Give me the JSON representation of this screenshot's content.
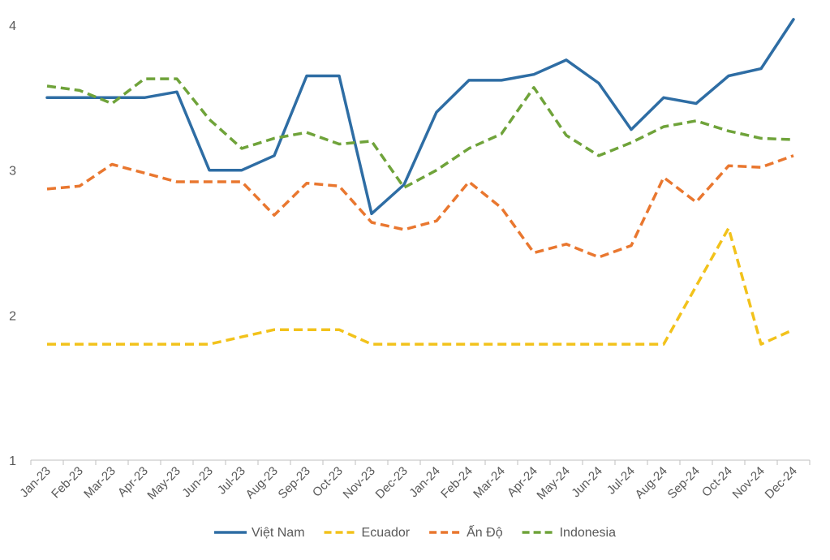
{
  "chart_data": {
    "type": "line",
    "title": "",
    "xlabel": "",
    "ylabel": "",
    "ylim": [
      1,
      4
    ],
    "y_ticks": [
      "1",
      "2",
      "3",
      "4"
    ],
    "grid": false,
    "legend_position": "bottom",
    "categories": [
      "Jan-23",
      "Feb-23",
      "Mar-23",
      "Apr-23",
      "May-23",
      "Jun-23",
      "Jul-23",
      "Aug-23",
      "Sep-23",
      "Oct-23",
      "Nov-23",
      "Dec-23",
      "Jan-24",
      "Feb-24",
      "Mar-24",
      "Apr-24",
      "May-24",
      "Jun-24",
      "Jul-24",
      "Aug-24",
      "Sep-24",
      "Oct-24",
      "Nov-24",
      "Dec-24"
    ],
    "series": [
      {
        "name": "Việt Nam",
        "color": "#2E6DA4",
        "dash": "solid",
        "values": [
          3.5,
          3.5,
          3.5,
          3.5,
          3.54,
          3.0,
          3.0,
          3.1,
          3.65,
          3.65,
          2.7,
          2.9,
          3.4,
          3.62,
          3.62,
          3.66,
          3.76,
          3.6,
          3.28,
          3.5,
          3.46,
          3.65,
          3.7,
          4.04
        ]
      },
      {
        "name": "Ecuador",
        "color": "#F2C21B",
        "dash": "dashed",
        "values": [
          1.8,
          1.8,
          1.8,
          1.8,
          1.8,
          1.8,
          1.85,
          1.9,
          1.9,
          1.9,
          1.8,
          1.8,
          1.8,
          1.8,
          1.8,
          1.8,
          1.8,
          1.8,
          1.8,
          1.8,
          2.2,
          2.6,
          1.8,
          1.9
        ]
      },
      {
        "name": "Ấn Độ",
        "color": "#E9772F",
        "dash": "dashed",
        "values": [
          2.87,
          2.89,
          3.04,
          2.98,
          2.92,
          2.92,
          2.92,
          2.69,
          2.91,
          2.89,
          2.64,
          2.59,
          2.65,
          2.92,
          2.74,
          2.43,
          2.49,
          2.4,
          2.48,
          2.95,
          2.78,
          3.03,
          3.02,
          3.1
        ]
      },
      {
        "name": "Indonesia",
        "color": "#6FA33A",
        "dash": "dashed",
        "values": [
          3.58,
          3.55,
          3.46,
          3.63,
          3.63,
          3.35,
          3.15,
          3.22,
          3.26,
          3.18,
          3.2,
          2.88,
          3.0,
          3.15,
          3.25,
          3.57,
          3.24,
          3.1,
          3.19,
          3.3,
          3.34,
          3.27,
          3.22,
          3.21
        ]
      }
    ]
  }
}
